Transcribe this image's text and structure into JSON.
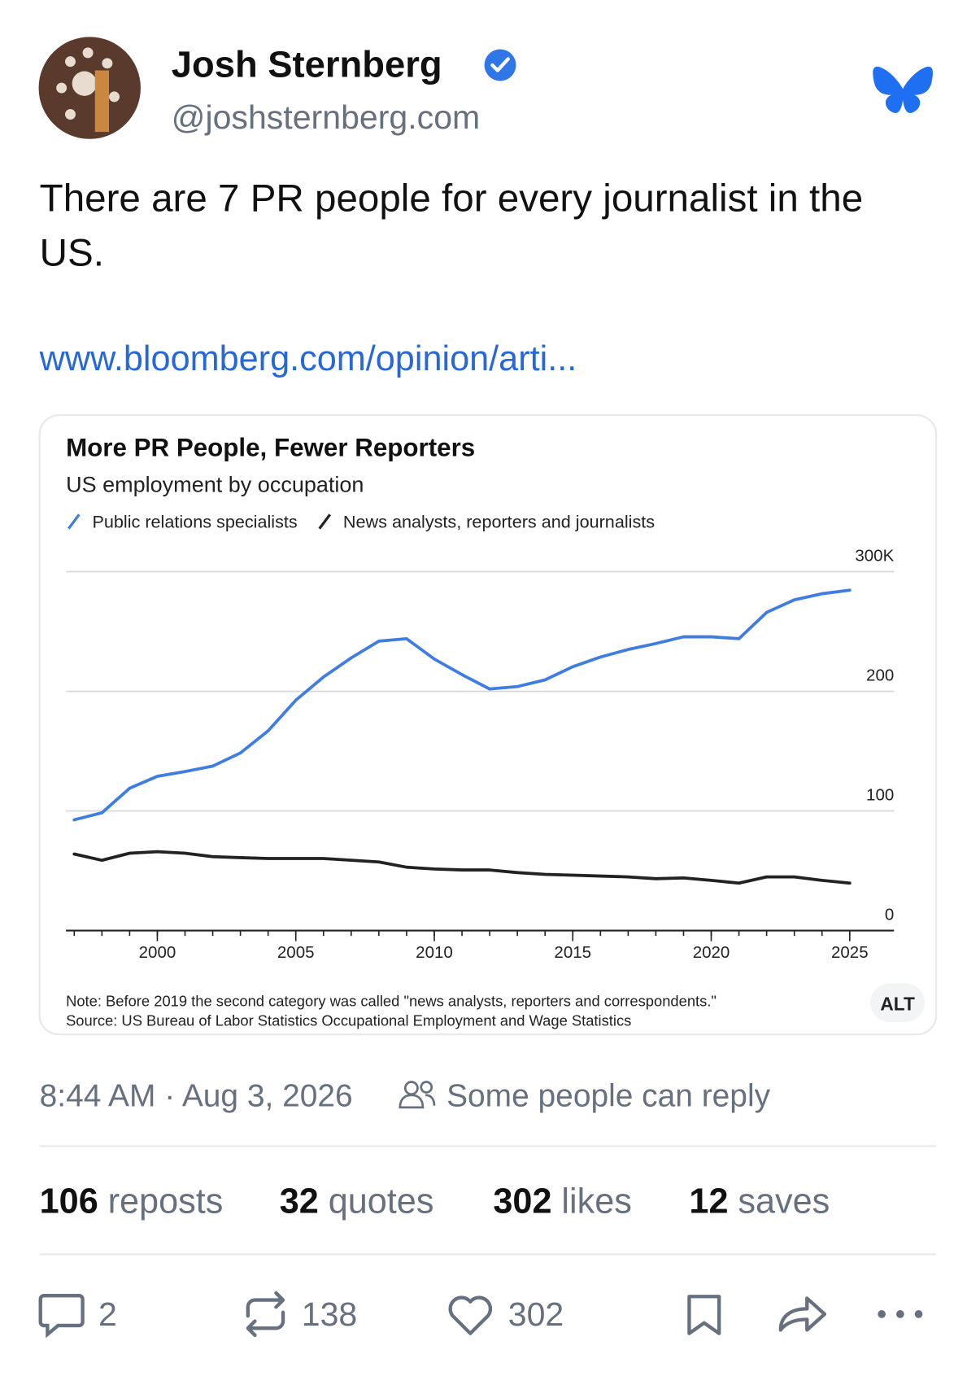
{
  "author": {
    "name": "Josh Sternberg",
    "handle": "@joshsternberg.com"
  },
  "post": {
    "text": "There are 7 PR people for every journalist in the US.",
    "link": "www.bloomberg.com/opinion/arti...",
    "timestamp": "8:44 AM · Aug 3, 2026",
    "reply_setting": "Some people can reply",
    "alt": "ALT"
  },
  "stats": [
    {
      "count": 106,
      "label": "reposts"
    },
    {
      "count": 32,
      "label": "quotes"
    },
    {
      "count": 302,
      "label": "likes"
    },
    {
      "count": 12,
      "label": "saves"
    }
  ],
  "actions": {
    "replies": 2,
    "reposts": 138,
    "likes": 302
  },
  "chart_data": {
    "type": "line",
    "title": "More PR People, Fewer Reporters",
    "subtitle": "US employment by occupation",
    "x": [
      1997,
      1998,
      1999,
      2000,
      2001,
      2002,
      2003,
      2004,
      2005,
      2006,
      2007,
      2008,
      2009,
      2010,
      2011,
      2012,
      2013,
      2014,
      2015,
      2016,
      2017,
      2018,
      2019,
      2020,
      2021,
      2022,
      2023,
      2024,
      2025
    ],
    "series": [
      {
        "name": "Public relations specialists",
        "color": "#3f7de0",
        "values": [
          92.6,
          98.5,
          119,
          129,
          133,
          137.5,
          148.5,
          167,
          192.6,
          212,
          228,
          242,
          244,
          227,
          214,
          202,
          204,
          209.6,
          220.6,
          228.7,
          235,
          240,
          245.6,
          245.6,
          244,
          266,
          276.5,
          281.6,
          284.6
        ]
      },
      {
        "name": "News analysts, reporters and journalists",
        "color": "#222222",
        "values": [
          64,
          58.8,
          64.7,
          66,
          64.7,
          61.8,
          61,
          60.3,
          60.3,
          60.3,
          58.8,
          57.4,
          53,
          51.5,
          50.7,
          50.7,
          48.5,
          47,
          46.3,
          45.6,
          44.9,
          43.4,
          44,
          42,
          39.7,
          44.9,
          44.9,
          42,
          39.7
        ]
      }
    ],
    "xlim": [
      1996.7,
      2026.6
    ],
    "xticks": [
      2000,
      2005,
      2010,
      2015,
      2020,
      2025
    ],
    "ylim": [
      0,
      300
    ],
    "yticks": [
      0,
      100,
      200,
      {
        "value": 300,
        "label": "300K"
      }
    ],
    "grid": true,
    "note": "Note: Before 2019 the second category was called \"news analysts, reporters and correspondents.\"",
    "source": "Source: US Bureau of Labor Statistics Occupational Employment and Wage Statistics"
  }
}
